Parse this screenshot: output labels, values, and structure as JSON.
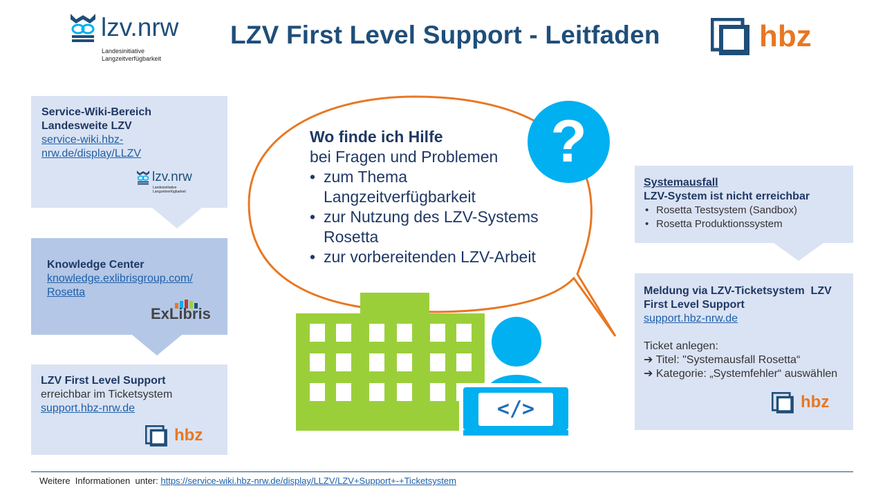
{
  "header": {
    "title": "LZV First Level Support - Leitfaden",
    "lzv_logo": {
      "name": "lzv.nrw",
      "sub1": "Landesinitiative",
      "sub2": "Langzeitverfügbarkeit"
    },
    "hbz_logo": {
      "name": "hbz"
    }
  },
  "left_boxes": {
    "wiki": {
      "heading1": "Service-Wiki-Bereich",
      "heading2": "Landesweite LZV",
      "link1": "service-wiki.hbz-",
      "link2": "nrw.de/display/LLZV",
      "logo": "lzv.nrw",
      "logo_sub1": "Landesinitiative",
      "logo_sub2": "Langzeitverfügbarkeit"
    },
    "knowledge": {
      "heading": "Knowledge Center",
      "link1": "knowledge.exlibrisgroup.com/",
      "link2": "Rosetta",
      "logo": "ExLibris"
    },
    "support": {
      "heading": "LZV First Level Support",
      "line": "erreichbar im Ticketsystem",
      "link": "support.hbz-nrw.de",
      "logo": "hbz"
    }
  },
  "bubble": {
    "question": "Wo finde ich Hilfe",
    "intro": "bei Fragen und Problemen",
    "items": [
      {
        "l1": "zum Thema",
        "l2": "Langzeitverfügbarkeit"
      },
      {
        "l1": "zur Nutzung des LZV-Systems",
        "l2": "Rosetta"
      },
      {
        "l1": "zur vorbereitenden LZV-Arbeit",
        "l2": ""
      }
    ],
    "question_mark": "?",
    "code_symbol": "</>"
  },
  "right_boxes": {
    "outage": {
      "title": "Systemausfall",
      "subtitle": "LZV-System ist nicht erreichbar",
      "items": [
        "Rosetta Testsystem (Sandbox)",
        "Rosetta Produktionssystem"
      ]
    },
    "ticket": {
      "heading1": "Meldung via LZV-Ticketsystem  LZV",
      "heading2": "First Level Support",
      "link": "support.hbz-nrw.de",
      "create": "Ticket anlegen:",
      "step1": "➔ Titel: \"Systemausfall Rosetta“",
      "step2": "➔ Kategorie: „Systemfehler“ auswählen",
      "logo": "hbz"
    }
  },
  "footer": {
    "label": "Weitere  Informationen  unter: ",
    "link": "https://service-wiki.hbz-nrw.de/display/LLZV/LZV+Support+-+Ticketsystem"
  },
  "colors": {
    "title": "#1f4e79",
    "box_light": "#dae3f3",
    "box_mid": "#b4c7e7",
    "bubble_outline": "#e87722",
    "accent_blue": "#00b0f0",
    "building_green": "#9bcf3a",
    "hbz_orange": "#e87722"
  }
}
